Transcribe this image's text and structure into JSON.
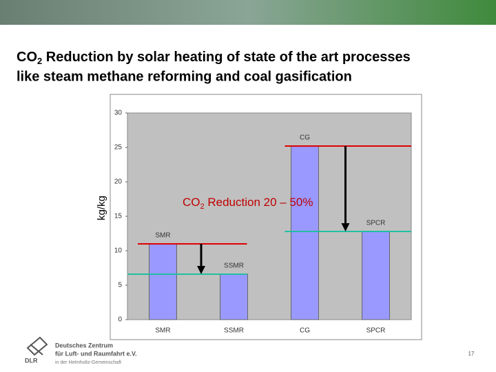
{
  "title": {
    "prefix": "CO",
    "subscript": "2",
    "rest": " Reduction by solar heating of state of the art processes",
    "line2": "like steam methane reforming and coal gasification"
  },
  "chart_data": {
    "type": "bar",
    "y_label": "kg/kg",
    "categories": [
      "SMR",
      "SSMR",
      "CG",
      "SPCR"
    ],
    "values": [
      11,
      6.6,
      25.2,
      12.8
    ],
    "color": "#9999ff",
    "ylim": [
      0,
      30
    ],
    "yticks": [
      0,
      5,
      10,
      15,
      20,
      25,
      30
    ],
    "grid": false,
    "annotation": {
      "prefix": "CO",
      "subscript": "2",
      "rest": " Reduction 20 – 50%"
    }
  },
  "footer": {
    "org_line1": "Deutsches Zentrum",
    "org_line2": "für Luft- und Raumfahrt e.V.",
    "org_line3": "in der Helmholtz-Gemeinschaft",
    "logo": "DLR",
    "page": "17"
  }
}
